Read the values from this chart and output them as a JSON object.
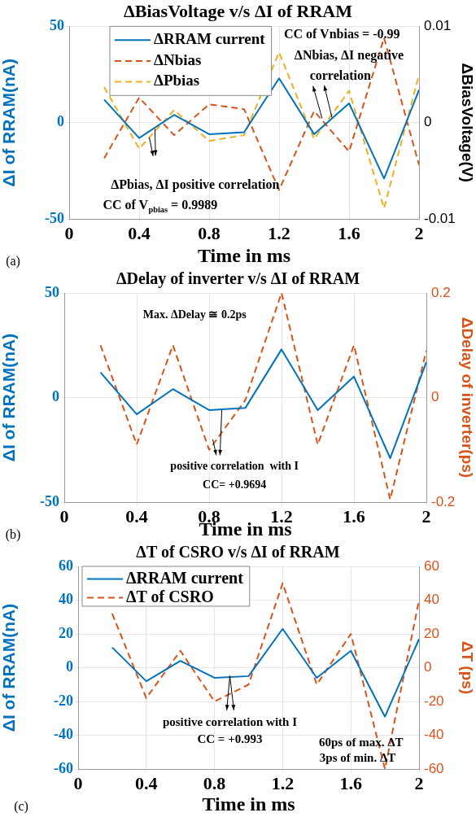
{
  "chart_data": [
    {
      "type": "line",
      "title": "ΔBiasVoltage v/s ΔI of RRAM",
      "xlabel": "Time in ms",
      "ylabel": "ΔI of RRAM(nA)",
      "y2label": "ΔBiasVoltage(V)",
      "x": [
        0.2,
        0.4,
        0.6,
        0.8,
        1.0,
        1.2,
        1.4,
        1.6,
        1.8,
        2.0
      ],
      "xlim": [
        0,
        2
      ],
      "xticks": [
        0,
        0.4,
        0.8,
        1.2,
        1.6,
        2
      ],
      "ylim": [
        -50,
        50
      ],
      "yticks": [
        -50,
        0,
        50
      ],
      "y2lim": [
        -0.01,
        0.01
      ],
      "y2ticks": [
        -0.01,
        0,
        0.01
      ],
      "grid": true,
      "legend": "top left",
      "marker": "none",
      "series": [
        {
          "name": "ΔRRAM current",
          "color": "#0072bd",
          "line_style": "solid",
          "values": [
            12,
            -8,
            4,
            -6,
            -5,
            23,
            -6,
            10,
            -29,
            17
          ]
        },
        {
          "name": "ΔNbias",
          "color": "#d95319",
          "line_style": "dashed",
          "axis": "y2",
          "values": [
            -0.0037,
            0.0026,
            -0.0013,
            0.0019,
            0.0014,
            -0.007,
            0.0012,
            -0.003,
            0.0088,
            -0.0044
          ]
        },
        {
          "name": "ΔPbias",
          "color": "#edb120",
          "line_style": "dashed",
          "axis": "y2",
          "values": [
            0.0037,
            -0.0027,
            0.0013,
            -0.0019,
            -0.0013,
            0.0073,
            -0.0017,
            0.0033,
            -0.0089,
            0.005
          ]
        }
      ],
      "annotations": [
        "CC of Vnbias = -0.99",
        "ΔNbias, ΔI negative",
        "correlation",
        "ΔPbias, ΔI positive correlation",
        "CC of V$_{pbias}$ = 0.9989",
        "(a)"
      ]
    },
    {
      "type": "line",
      "title": "ΔDelay of inverter v/s ΔI of RRAM",
      "xlabel": "Time in ms",
      "ylabel": "ΔI of RRAM(nA)",
      "y2label": "ΔDelay of inverter(ps)",
      "x": [
        0.2,
        0.4,
        0.6,
        0.8,
        1.0,
        1.2,
        1.4,
        1.6,
        1.8,
        2.0
      ],
      "xlim": [
        0,
        2
      ],
      "xticks": [
        0,
        0.4,
        0.8,
        1.2,
        1.6,
        2
      ],
      "ylim": [
        -50,
        50
      ],
      "yticks": [
        -50,
        0,
        50
      ],
      "y2lim": [
        -0.2,
        0.2
      ],
      "y2ticks": [
        -0.2,
        0,
        0.2
      ],
      "grid": true,
      "marker": "none",
      "series": [
        {
          "color": "#0072bd",
          "line_style": "solid",
          "values": [
            12,
            -8,
            4,
            -6,
            -5,
            23,
            -6,
            10,
            -29,
            17
          ]
        },
        {
          "color": "#d95319",
          "line_style": "dashed",
          "axis": "y2",
          "values": [
            0.1,
            -0.09,
            0.1,
            -0.1,
            -0.005,
            0.2,
            -0.09,
            0.1,
            -0.195,
            0.09
          ]
        }
      ],
      "annotations": [
        "Max. ΔDelay ≅ 0.2ps",
        "positive correlation  with I",
        "CC= +0.9694",
        "(b)"
      ]
    },
    {
      "type": "line",
      "title": "ΔT of CSRO v/s ΔI of RRAM",
      "xlabel": "Time in ms",
      "ylabel": "ΔI of RRAM(nA)",
      "y2label": "ΔT (ps)",
      "x": [
        0.2,
        0.4,
        0.6,
        0.8,
        1.0,
        1.2,
        1.4,
        1.6,
        1.8,
        2.0
      ],
      "xlim": [
        0,
        2
      ],
      "xticks": [
        0,
        0.4,
        0.8,
        1.2,
        1.6,
        2
      ],
      "ylim": [
        -60,
        60
      ],
      "yticks": [
        -60,
        -40,
        -20,
        0,
        20,
        40,
        60
      ],
      "y2lim": [
        -60,
        60
      ],
      "y2ticks": [
        -60,
        -40,
        -20,
        0,
        20,
        40,
        60
      ],
      "grid": true,
      "legend": "top left",
      "marker": "none",
      "series": [
        {
          "name": "ΔRRAM current",
          "color": "#0072bd",
          "line_style": "solid",
          "values": [
            12,
            -8,
            4,
            -6,
            -5,
            23,
            -6,
            10,
            -29,
            17
          ]
        },
        {
          "name": "ΔT of CSRO",
          "color": "#d95319",
          "line_style": "dashed",
          "axis": "y2",
          "values": [
            32,
            -18,
            10,
            -20,
            -10,
            50,
            -10,
            20,
            -60,
            40
          ]
        }
      ],
      "annotations": [
        "positive correlation with I",
        "CC = +0.993",
        "60ps of max. ΔT",
        "3ps of min. ΔT",
        "(c)"
      ]
    }
  ]
}
